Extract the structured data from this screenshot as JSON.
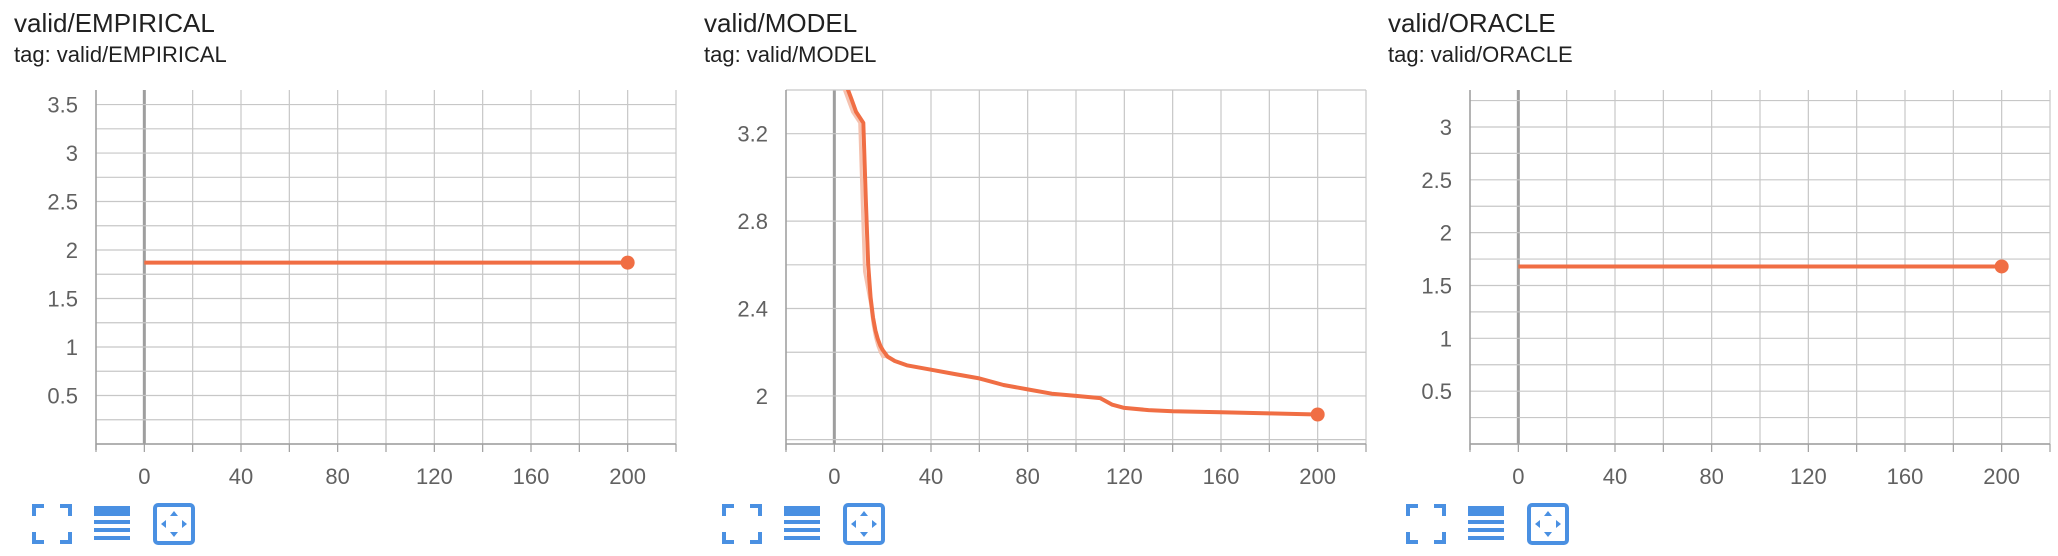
{
  "colors": {
    "series": "#f06e44",
    "series_raw": "#f5c2b0",
    "grid": "#c7c7c7",
    "axis": "#9e9e9e",
    "accent": "#4a90e2"
  },
  "icons": [
    "fullscreen-icon",
    "data-table-icon",
    "fit-domain-icon"
  ],
  "chart_data": [
    {
      "type": "line",
      "title": "valid/EMPIRICAL",
      "tag": "tag: valid/EMPIRICAL",
      "xlim": [
        -20,
        220
      ],
      "ylim": [
        0,
        3.65
      ],
      "xticks": [
        0,
        40,
        80,
        120,
        160,
        200
      ],
      "yticks": [
        0.5,
        1,
        1.5,
        2,
        2.5,
        3,
        3.5
      ],
      "ytick_labels": [
        "0.5",
        "1",
        "1.5",
        "2",
        "2.5",
        "3",
        "3.5"
      ],
      "series": [
        {
          "x": [
            0,
            200
          ],
          "y": [
            1.87,
            1.87
          ]
        }
      ]
    },
    {
      "type": "line",
      "title": "valid/MODEL",
      "tag": "tag: valid/MODEL",
      "xlim": [
        -20,
        220
      ],
      "ylim": [
        1.78,
        3.4
      ],
      "xticks": [
        0,
        40,
        80,
        120,
        160,
        200
      ],
      "yticks": [
        2,
        2.4,
        2.8,
        3.2
      ],
      "ytick_labels": [
        "2",
        "2.4",
        "2.8",
        "3.2"
      ],
      "series": [
        {
          "x": [
            5,
            7,
            9,
            12,
            13,
            14,
            15,
            16,
            17,
            18,
            19,
            20,
            22,
            25,
            30,
            40,
            50,
            60,
            70,
            80,
            90,
            100,
            110,
            115,
            120,
            130,
            140,
            160,
            180,
            200
          ],
          "y": [
            3.42,
            3.36,
            3.3,
            3.25,
            2.9,
            2.6,
            2.45,
            2.36,
            2.3,
            2.26,
            2.23,
            2.21,
            2.18,
            2.16,
            2.14,
            2.12,
            2.1,
            2.08,
            2.05,
            2.03,
            2.01,
            2.0,
            1.99,
            1.96,
            1.945,
            1.935,
            1.93,
            1.925,
            1.92,
            1.915
          ]
        }
      ]
    },
    {
      "type": "line",
      "title": "valid/ORACLE",
      "tag": "tag: valid/ORACLE",
      "xlim": [
        -20,
        220
      ],
      "ylim": [
        0,
        3.35
      ],
      "xticks": [
        0,
        40,
        80,
        120,
        160,
        200
      ],
      "yticks": [
        0.5,
        1,
        1.5,
        2,
        2.5,
        3
      ],
      "ytick_labels": [
        "0.5",
        "1",
        "1.5",
        "2",
        "2.5",
        "3"
      ],
      "series": [
        {
          "x": [
            0,
            200
          ],
          "y": [
            1.68,
            1.68
          ]
        }
      ]
    }
  ]
}
